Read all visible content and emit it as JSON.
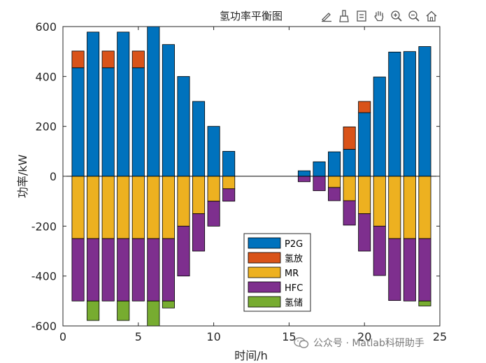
{
  "toolbar": {
    "icons": [
      "edit-pen-icon",
      "brush-icon",
      "data-tips-icon",
      "pan-hand-icon",
      "zoom-in-icon",
      "zoom-out-icon",
      "home-icon"
    ]
  },
  "watermark": {
    "text": "公众号 · Matlab科研助手"
  },
  "chart_data": {
    "type": "bar",
    "stacked": true,
    "title": "氢功率平衡图",
    "xlabel": "时间/h",
    "ylabel": "功率/kW",
    "xlim": [
      0,
      25
    ],
    "ylim": [
      -600,
      600
    ],
    "xticks": [
      0,
      5,
      10,
      15,
      20,
      25
    ],
    "yticks": [
      -600,
      -400,
      -200,
      0,
      200,
      400,
      600
    ],
    "x": [
      1,
      2,
      3,
      4,
      5,
      6,
      7,
      8,
      9,
      10,
      11,
      12,
      13,
      14,
      15,
      16,
      17,
      18,
      19,
      20,
      21,
      22,
      23,
      24
    ],
    "legend_position": "bottom-center",
    "series": [
      {
        "name": "P2G",
        "color": "#0072BD",
        "values": [
          435,
          578,
          435,
          578,
          435,
          600,
          528,
          400,
          300,
          200,
          100,
          0,
          0,
          0,
          0,
          22,
          58,
          98,
          108,
          255,
          398,
          498,
          500,
          520
        ]
      },
      {
        "name": "氢放",
        "color": "#D95319",
        "values": [
          67,
          0,
          67,
          0,
          67,
          0,
          0,
          0,
          0,
          0,
          0,
          0,
          0,
          0,
          0,
          0,
          0,
          0,
          90,
          45,
          0,
          0,
          0,
          0
        ]
      },
      {
        "name": "MR",
        "color": "#EDB120",
        "values": [
          -250,
          -250,
          -250,
          -250,
          -250,
          -250,
          -250,
          -200,
          -150,
          -100,
          -50,
          0,
          0,
          0,
          0,
          0,
          0,
          -45,
          -98,
          -150,
          -200,
          -250,
          -250,
          -250
        ]
      },
      {
        "name": "HFC",
        "color": "#7E2F8E",
        "values": [
          -250,
          -250,
          -250,
          -250,
          -250,
          -250,
          -250,
          -200,
          -150,
          -100,
          -50,
          0,
          0,
          0,
          0,
          -22,
          -58,
          -53,
          -98,
          -150,
          -198,
          -248,
          -250,
          -250
        ]
      },
      {
        "name": "氢储",
        "color": "#77AC30",
        "values": [
          0,
          -78,
          0,
          -78,
          0,
          -100,
          -28,
          0,
          0,
          0,
          0,
          0,
          0,
          0,
          0,
          0,
          0,
          0,
          0,
          0,
          0,
          0,
          0,
          -20
        ]
      }
    ]
  }
}
